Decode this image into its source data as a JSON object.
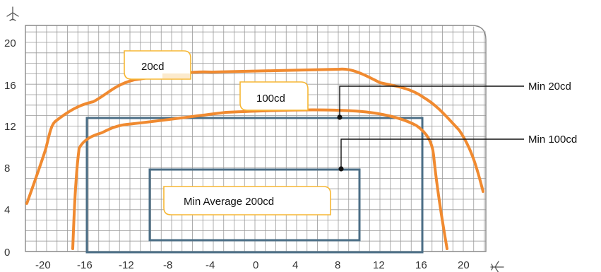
{
  "y_axis_ticks": [
    "0",
    "4",
    "8",
    "12",
    "16",
    "20"
  ],
  "x_axis_ticks": [
    "-20",
    "-16",
    "-12",
    "-8",
    "-4",
    "0",
    "4",
    "8",
    "12",
    "16",
    "20"
  ],
  "icons": {
    "y_axis": "airplane-up-icon",
    "x_axis": "airplane-right-icon"
  },
  "curves": [
    {
      "label": "20cd",
      "color": "#f08a30"
    },
    {
      "label": "100cd",
      "color": "#f08a30"
    }
  ],
  "zones": [
    {
      "label": "Min Average  200cd",
      "color": "#4b6e86"
    }
  ],
  "callouts": [
    {
      "label": "Min 20cd"
    },
    {
      "label": "Min 100cd"
    }
  ],
  "colors": {
    "curve": "#f08a30",
    "rectangle": "#4b6e86",
    "label_border": "#f7b733",
    "grid": "#9a9a9a"
  }
}
